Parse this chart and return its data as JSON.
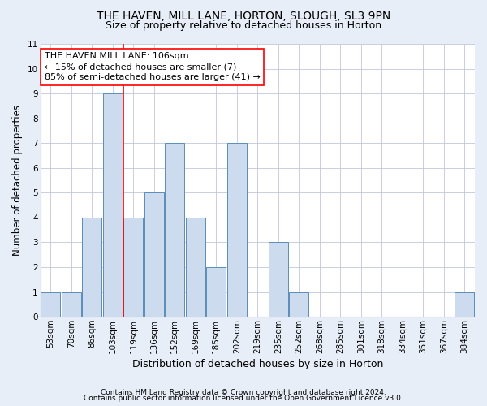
{
  "title1": "THE HAVEN, MILL LANE, HORTON, SLOUGH, SL3 9PN",
  "title2": "Size of property relative to detached houses in Horton",
  "xlabel": "Distribution of detached houses by size in Horton",
  "ylabel": "Number of detached properties",
  "bin_labels": [
    "53sqm",
    "70sqm",
    "86sqm",
    "103sqm",
    "119sqm",
    "136sqm",
    "152sqm",
    "169sqm",
    "185sqm",
    "202sqm",
    "219sqm",
    "235sqm",
    "252sqm",
    "268sqm",
    "285sqm",
    "301sqm",
    "318sqm",
    "334sqm",
    "351sqm",
    "367sqm",
    "384sqm"
  ],
  "bar_heights": [
    1,
    1,
    4,
    9,
    4,
    5,
    7,
    4,
    2,
    7,
    0,
    3,
    1,
    0,
    0,
    0,
    0,
    0,
    0,
    0,
    1
  ],
  "bar_color": "#ccdcee",
  "bar_edge_color": "#5b8db8",
  "red_line_bin": 3,
  "ylim": [
    0,
    11
  ],
  "yticks": [
    0,
    1,
    2,
    3,
    4,
    5,
    6,
    7,
    8,
    9,
    10,
    11
  ],
  "annotation_line1": "THE HAVEN MILL LANE: 106sqm",
  "annotation_line2": "← 15% of detached houses are smaller (7)",
  "annotation_line3": "85% of semi-detached houses are larger (41) →",
  "footer1": "Contains HM Land Registry data © Crown copyright and database right 2024.",
  "footer2": "Contains public sector information licensed under the Open Government Licence v3.0.",
  "bg_color": "#e8eef8",
  "plot_bg_color": "#ffffff",
  "grid_color": "#c0c8d8",
  "title1_fontsize": 10,
  "title2_fontsize": 9,
  "annotation_fontsize": 8,
  "tick_fontsize": 7.5,
  "ylabel_fontsize": 8.5,
  "xlabel_fontsize": 9,
  "footer_fontsize": 6.5
}
